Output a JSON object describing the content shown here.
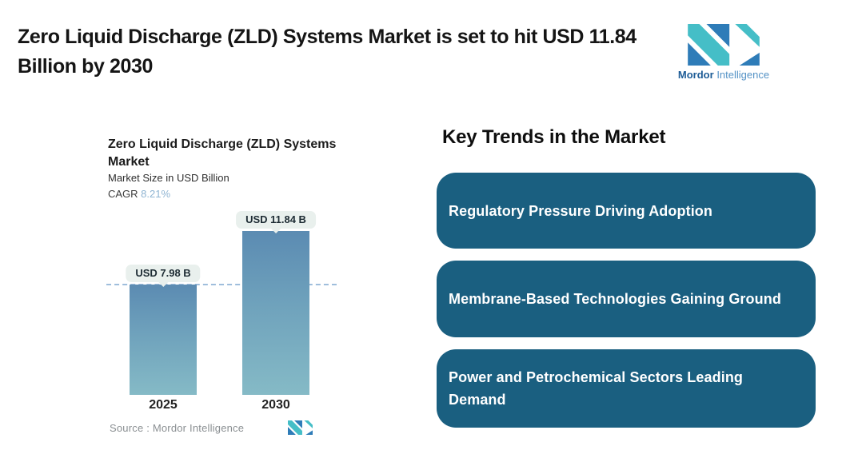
{
  "header": {
    "title": "Zero Liquid Discharge (ZLD) Systems Market is set to hit USD 11.84 Billion by 2030",
    "brand": {
      "name_bold": "Mordor",
      "name_light": "Intelligence"
    }
  },
  "chart": {
    "title": "Zero Liquid Discharge (ZLD) Systems Market",
    "subtitle": "Market Size in USD Billion",
    "cagr_label": "CAGR ",
    "cagr_value": "8.21%",
    "source_label": "Source :  Mordor Intelligence"
  },
  "chart_data": {
    "type": "bar",
    "title": "Zero Liquid Discharge (ZLD) Systems Market",
    "ylabel": "Market Size in USD Billion",
    "categories": [
      "2025",
      "2030"
    ],
    "values": [
      7.98,
      11.84
    ],
    "value_labels": [
      "USD 7.98 B",
      "USD 11.84 B"
    ],
    "cagr_percent": 8.21,
    "reference_line_value": 7.98,
    "grid": "off",
    "legend": "none",
    "bar_gradient_top": "#5B8BB2",
    "bar_gradient_bottom": "#85BAC6"
  },
  "trends": {
    "heading": "Key Trends in the Market",
    "items": [
      "Regulatory Pressure Driving Adoption",
      "Membrane-Based Technologies Gaining Ground",
      "Power and Petrochemical Sectors Leading Demand"
    ]
  },
  "colors": {
    "trend_card_bg": "#1A5F80",
    "trend_card_text": "#FFFFFF",
    "logo_teal": "#45BEC7",
    "logo_blue": "#2E7CB8",
    "brand_bold_text": "#1D5C96",
    "brand_light_text": "#5593C6",
    "cagr_value": "#8FB4D2",
    "dashed_line": "#9FBEDC",
    "bubble_bg": "#E9F0ED",
    "title_text": "#151515",
    "source_text": "#8A8F92"
  }
}
